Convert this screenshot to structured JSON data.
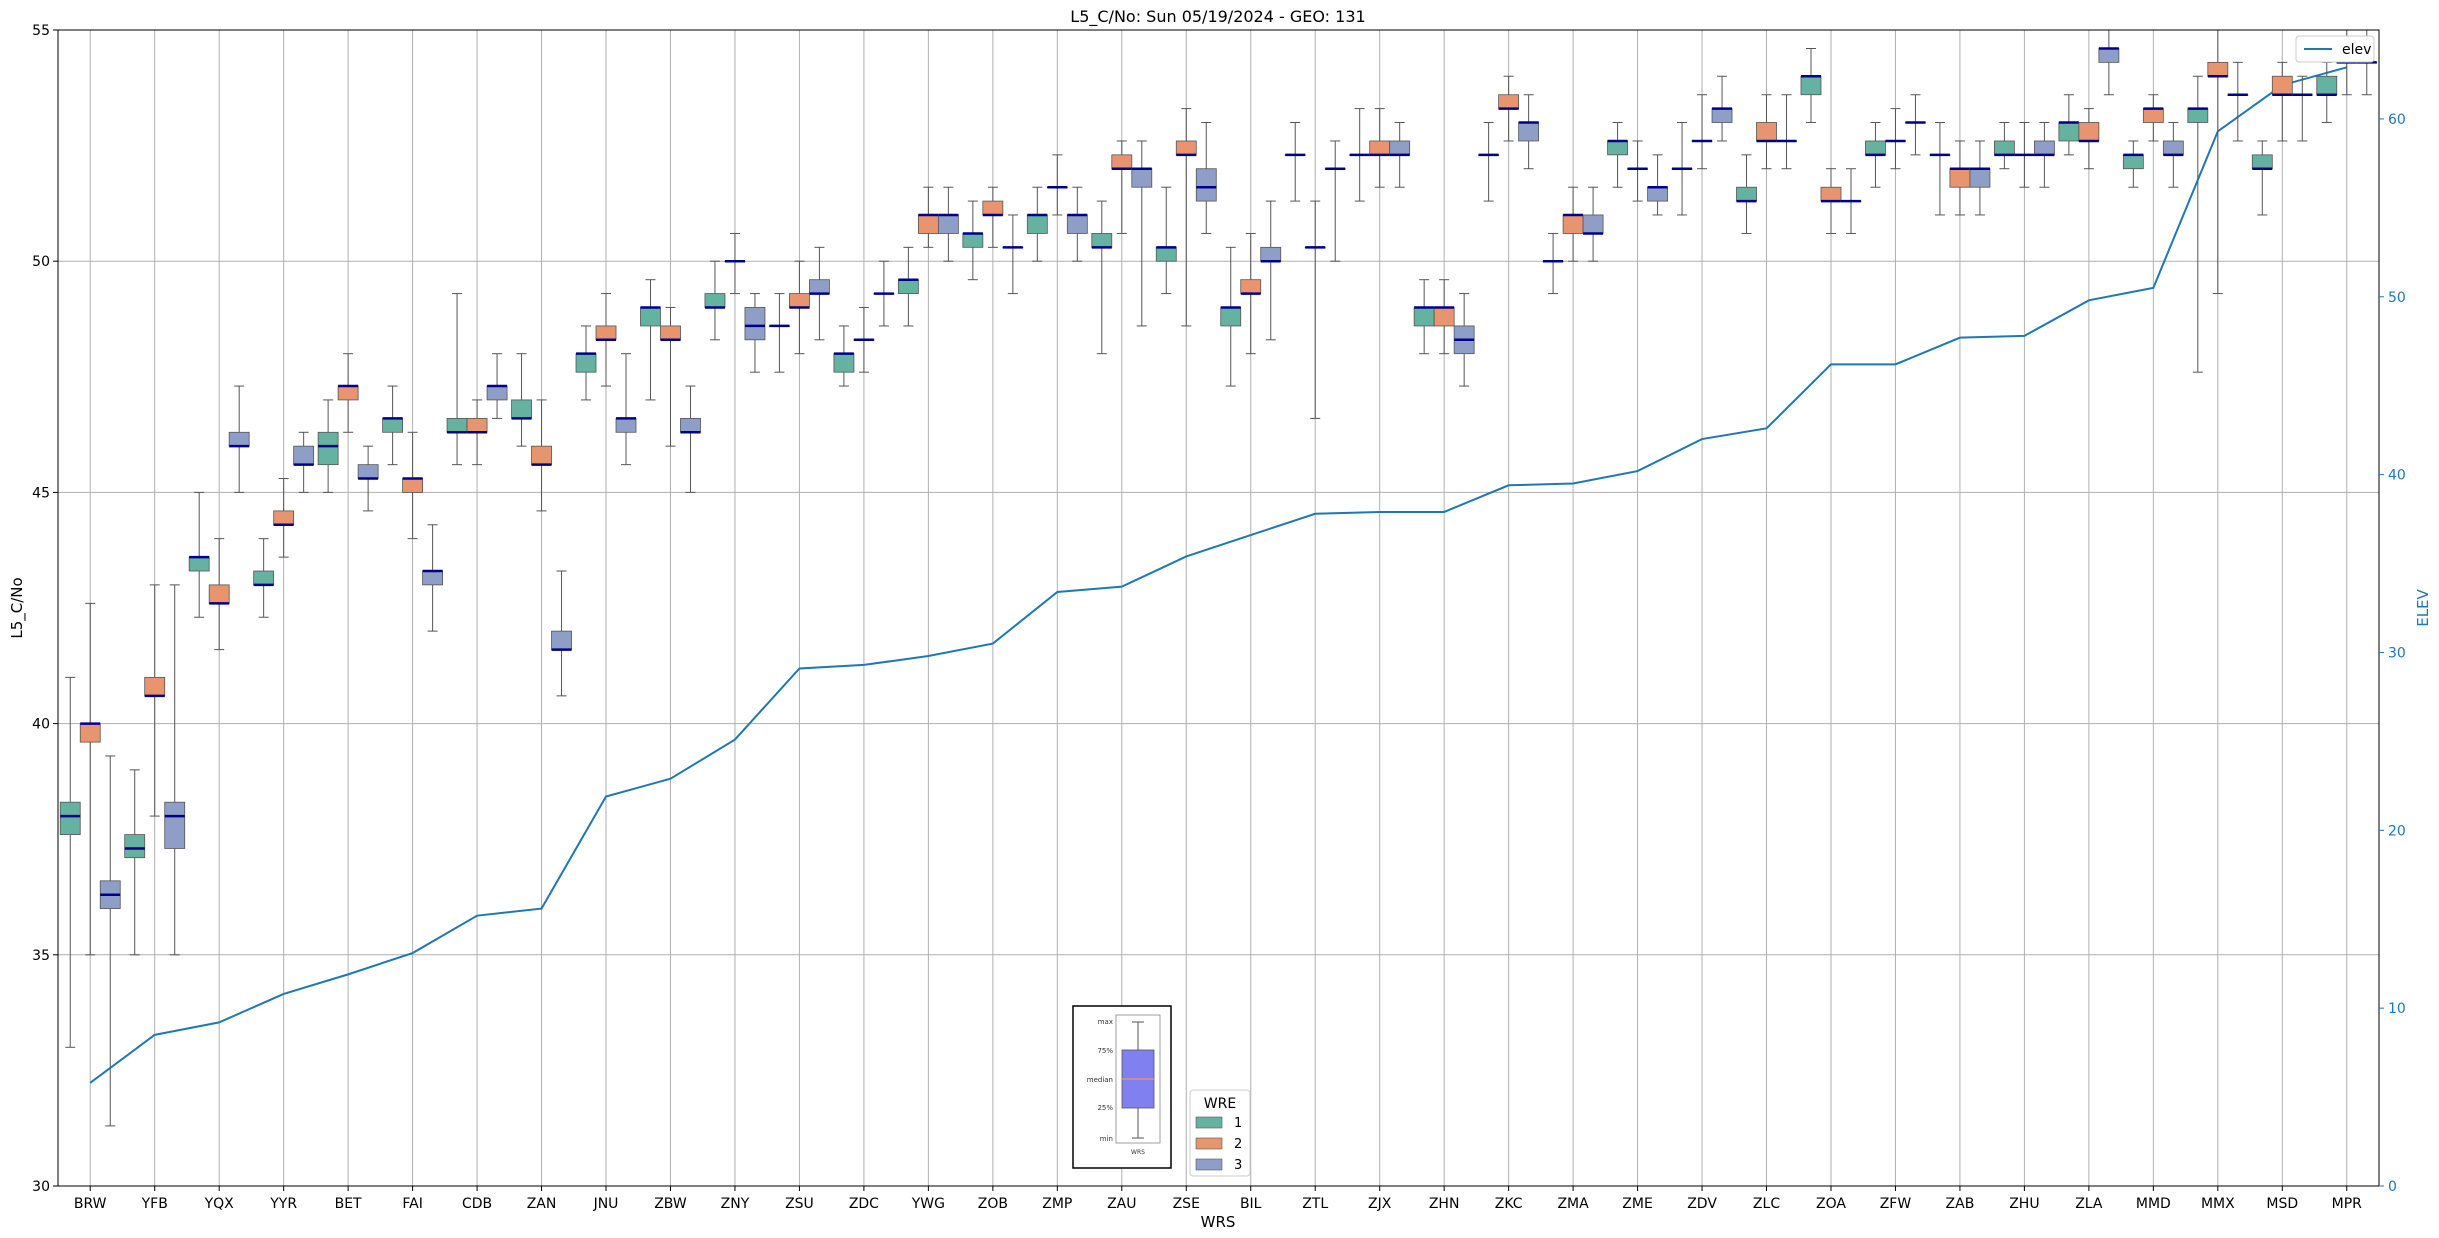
{
  "chart_data": {
    "type": "box",
    "title": "L5_C/No: Sun 05/19/2024 - GEO: 131",
    "xlabel": "WRS",
    "ylabel": "L5_C/No",
    "y2label": "ELEV",
    "ylim": [
      30,
      55
    ],
    "y2lim": [
      0,
      65
    ],
    "yticks": [
      "30",
      "35",
      "40",
      "45",
      "50",
      "55"
    ],
    "y2ticks": [
      "0",
      "10",
      "20",
      "30",
      "40",
      "50",
      "60"
    ],
    "grid": true,
    "categories": [
      "BRW",
      "YFB",
      "YQX",
      "YYR",
      "BET",
      "FAI",
      "CDB",
      "ZAN",
      "JNU",
      "ZBW",
      "ZNY",
      "ZSU",
      "ZDC",
      "YWG",
      "ZOB",
      "ZMP",
      "ZAU",
      "ZSE",
      "BIL",
      "ZTL",
      "ZJX",
      "ZHN",
      "ZKC",
      "ZMA",
      "ZME",
      "ZDV",
      "ZLC",
      "ZOA",
      "ZFW",
      "ZAB",
      "ZHU",
      "ZLA",
      "MMD",
      "MMX",
      "MSD",
      "MPR"
    ],
    "wre_legend": {
      "title": "WRE",
      "entries": [
        {
          "label": "1",
          "color": "#66b2a0"
        },
        {
          "label": "2",
          "color": "#e8956f"
        },
        {
          "label": "3",
          "color": "#8f9ec6"
        }
      ]
    },
    "elev_legend": {
      "label": "elev",
      "color": "#1f77b4"
    },
    "inset_labels": [
      "max",
      "75%",
      "median",
      "25%",
      "min",
      "WRS"
    ],
    "elev": [
      5.8,
      8.5,
      9.2,
      10.8,
      11.9,
      13.1,
      15.2,
      15.6,
      21.9,
      22.9,
      25.1,
      29.1,
      29.3,
      29.8,
      30.5,
      33.4,
      33.7,
      35.4,
      36.6,
      37.8,
      37.9,
      37.9,
      39.4,
      39.5,
      40.2,
      42.0,
      42.6,
      46.2,
      46.2,
      47.7,
      47.8,
      49.8,
      50.5,
      59.3,
      61.9,
      62.9
    ],
    "boxes": [
      {
        "station": "BRW",
        "wre": 1,
        "min": 33.0,
        "q1": 37.6,
        "median": 38.0,
        "q3": 38.3,
        "max": 41.0
      },
      {
        "station": "BRW",
        "wre": 2,
        "min": 35.0,
        "q1": 39.6,
        "median": 40.0,
        "q3": 40.0,
        "max": 42.6
      },
      {
        "station": "BRW",
        "wre": 3,
        "min": 31.3,
        "q1": 36.0,
        "median": 36.3,
        "q3": 36.6,
        "max": 39.3
      },
      {
        "station": "YFB",
        "wre": 1,
        "min": 35.0,
        "q1": 37.1,
        "median": 37.3,
        "q3": 37.6,
        "max": 39.0
      },
      {
        "station": "YFB",
        "wre": 2,
        "min": 38.0,
        "q1": 40.6,
        "median": 40.6,
        "q3": 41.0,
        "max": 43.0
      },
      {
        "station": "YFB",
        "wre": 3,
        "min": 35.0,
        "q1": 37.3,
        "median": 38.0,
        "q3": 38.3,
        "max": 43.0
      },
      {
        "station": "YQX",
        "wre": 1,
        "min": 42.3,
        "q1": 43.3,
        "median": 43.6,
        "q3": 43.6,
        "max": 45.0
      },
      {
        "station": "YQX",
        "wre": 2,
        "min": 41.6,
        "q1": 42.6,
        "median": 42.6,
        "q3": 43.0,
        "max": 44.0
      },
      {
        "station": "YQX",
        "wre": 3,
        "min": 45.0,
        "q1": 46.0,
        "median": 46.0,
        "q3": 46.3,
        "max": 47.3
      },
      {
        "station": "YYR",
        "wre": 1,
        "min": 42.3,
        "q1": 43.0,
        "median": 43.0,
        "q3": 43.3,
        "max": 44.0
      },
      {
        "station": "YYR",
        "wre": 2,
        "min": 43.6,
        "q1": 44.3,
        "median": 44.3,
        "q3": 44.6,
        "max": 45.3
      },
      {
        "station": "YYR",
        "wre": 3,
        "min": 45.0,
        "q1": 45.6,
        "median": 45.6,
        "q3": 46.0,
        "max": 46.3
      },
      {
        "station": "BET",
        "wre": 1,
        "min": 45.0,
        "q1": 45.6,
        "median": 46.0,
        "q3": 46.3,
        "max": 47.0
      },
      {
        "station": "BET",
        "wre": 2,
        "min": 46.3,
        "q1": 47.0,
        "median": 47.3,
        "q3": 47.3,
        "max": 48.0
      },
      {
        "station": "BET",
        "wre": 3,
        "min": 44.6,
        "q1": 45.3,
        "median": 45.3,
        "q3": 45.6,
        "max": 46.0
      },
      {
        "station": "FAI",
        "wre": 1,
        "min": 45.6,
        "q1": 46.3,
        "median": 46.6,
        "q3": 46.6,
        "max": 47.3
      },
      {
        "station": "FAI",
        "wre": 2,
        "min": 44.0,
        "q1": 45.0,
        "median": 45.3,
        "q3": 45.3,
        "max": 46.3
      },
      {
        "station": "FAI",
        "wre": 3,
        "min": 42.0,
        "q1": 43.0,
        "median": 43.3,
        "q3": 43.3,
        "max": 44.3
      },
      {
        "station": "CDB",
        "wre": 1,
        "min": 45.6,
        "q1": 46.3,
        "median": 46.3,
        "q3": 46.6,
        "max": 49.3
      },
      {
        "station": "CDB",
        "wre": 2,
        "min": 45.6,
        "q1": 46.3,
        "median": 46.3,
        "q3": 46.6,
        "max": 47.0
      },
      {
        "station": "CDB",
        "wre": 3,
        "min": 46.6,
        "q1": 47.0,
        "median": 47.3,
        "q3": 47.3,
        "max": 48.0
      },
      {
        "station": "ZAN",
        "wre": 1,
        "min": 46.0,
        "q1": 46.6,
        "median": 46.6,
        "q3": 47.0,
        "max": 48.0
      },
      {
        "station": "ZAN",
        "wre": 2,
        "min": 44.6,
        "q1": 45.6,
        "median": 45.6,
        "q3": 46.0,
        "max": 47.0
      },
      {
        "station": "ZAN",
        "wre": 3,
        "min": 40.6,
        "q1": 41.6,
        "median": 41.6,
        "q3": 42.0,
        "max": 43.3
      },
      {
        "station": "JNU",
        "wre": 1,
        "min": 47.0,
        "q1": 47.6,
        "median": 48.0,
        "q3": 48.0,
        "max": 48.6
      },
      {
        "station": "JNU",
        "wre": 2,
        "min": 47.3,
        "q1": 48.3,
        "median": 48.3,
        "q3": 48.6,
        "max": 49.3
      },
      {
        "station": "JNU",
        "wre": 3,
        "min": 45.6,
        "q1": 46.3,
        "median": 46.6,
        "q3": 46.6,
        "max": 48.0
      },
      {
        "station": "ZBW",
        "wre": 1,
        "min": 47.0,
        "q1": 48.6,
        "median": 49.0,
        "q3": 49.0,
        "max": 49.6
      },
      {
        "station": "ZBW",
        "wre": 2,
        "min": 46.0,
        "q1": 48.3,
        "median": 48.3,
        "q3": 48.6,
        "max": 49.0
      },
      {
        "station": "ZBW",
        "wre": 3,
        "min": 45.0,
        "q1": 46.3,
        "median": 46.3,
        "q3": 46.6,
        "max": 47.3
      },
      {
        "station": "ZNY",
        "wre": 1,
        "min": 48.3,
        "q1": 49.0,
        "median": 49.0,
        "q3": 49.3,
        "max": 50.0
      },
      {
        "station": "ZNY",
        "wre": 2,
        "min": 49.3,
        "q1": 50.0,
        "median": 50.0,
        "q3": 50.0,
        "max": 50.6
      },
      {
        "station": "ZNY",
        "wre": 3,
        "min": 47.6,
        "q1": 48.3,
        "median": 48.6,
        "q3": 49.0,
        "max": 49.3
      },
      {
        "station": "ZSU",
        "wre": 1,
        "min": 47.6,
        "q1": 48.6,
        "median": 48.6,
        "q3": 48.6,
        "max": 49.3
      },
      {
        "station": "ZSU",
        "wre": 2,
        "min": 48.0,
        "q1": 49.0,
        "median": 49.0,
        "q3": 49.3,
        "max": 50.0
      },
      {
        "station": "ZSU",
        "wre": 3,
        "min": 48.3,
        "q1": 49.3,
        "median": 49.3,
        "q3": 49.6,
        "max": 50.3
      },
      {
        "station": "ZDC",
        "wre": 1,
        "min": 47.3,
        "q1": 47.6,
        "median": 48.0,
        "q3": 48.0,
        "max": 48.6
      },
      {
        "station": "ZDC",
        "wre": 2,
        "min": 47.6,
        "q1": 48.3,
        "median": 48.3,
        "q3": 48.3,
        "max": 49.0
      },
      {
        "station": "ZDC",
        "wre": 3,
        "min": 48.6,
        "q1": 49.3,
        "median": 49.3,
        "q3": 49.3,
        "max": 50.0
      },
      {
        "station": "YWG",
        "wre": 1,
        "min": 48.6,
        "q1": 49.3,
        "median": 49.6,
        "q3": 49.6,
        "max": 50.3
      },
      {
        "station": "YWG",
        "wre": 2,
        "min": 50.3,
        "q1": 50.6,
        "median": 51.0,
        "q3": 51.0,
        "max": 51.6
      },
      {
        "station": "YWG",
        "wre": 3,
        "min": 50.0,
        "q1": 50.6,
        "median": 51.0,
        "q3": 51.0,
        "max": 51.6
      },
      {
        "station": "ZOB",
        "wre": 1,
        "min": 49.6,
        "q1": 50.3,
        "median": 50.6,
        "q3": 50.6,
        "max": 51.3
      },
      {
        "station": "ZOB",
        "wre": 2,
        "min": 50.3,
        "q1": 51.0,
        "median": 51.0,
        "q3": 51.3,
        "max": 51.6
      },
      {
        "station": "ZOB",
        "wre": 3,
        "min": 49.3,
        "q1": 50.3,
        "median": 50.3,
        "q3": 50.3,
        "max": 51.0
      },
      {
        "station": "ZMP",
        "wre": 1,
        "min": 50.0,
        "q1": 50.6,
        "median": 51.0,
        "q3": 51.0,
        "max": 51.6
      },
      {
        "station": "ZMP",
        "wre": 2,
        "min": 51.0,
        "q1": 51.6,
        "median": 51.6,
        "q3": 51.6,
        "max": 52.3
      },
      {
        "station": "ZMP",
        "wre": 3,
        "min": 50.0,
        "q1": 50.6,
        "median": 51.0,
        "q3": 51.0,
        "max": 51.6
      },
      {
        "station": "ZAU",
        "wre": 1,
        "min": 48.0,
        "q1": 50.3,
        "median": 50.3,
        "q3": 50.6,
        "max": 51.3
      },
      {
        "station": "ZAU",
        "wre": 2,
        "min": 50.6,
        "q1": 52.0,
        "median": 52.0,
        "q3": 52.3,
        "max": 52.6
      },
      {
        "station": "ZAU",
        "wre": 3,
        "min": 48.6,
        "q1": 51.6,
        "median": 52.0,
        "q3": 52.0,
        "max": 52.6
      },
      {
        "station": "ZSE",
        "wre": 1,
        "min": 49.3,
        "q1": 50.0,
        "median": 50.3,
        "q3": 50.3,
        "max": 51.6
      },
      {
        "station": "ZSE",
        "wre": 2,
        "min": 48.6,
        "q1": 52.3,
        "median": 52.3,
        "q3": 52.6,
        "max": 53.3
      },
      {
        "station": "ZSE",
        "wre": 3,
        "min": 50.6,
        "q1": 51.3,
        "median": 51.6,
        "q3": 52.0,
        "max": 53.0
      },
      {
        "station": "BIL",
        "wre": 1,
        "min": 47.3,
        "q1": 48.6,
        "median": 49.0,
        "q3": 49.0,
        "max": 50.3
      },
      {
        "station": "BIL",
        "wre": 2,
        "min": 48.0,
        "q1": 49.3,
        "median": 49.3,
        "q3": 49.6,
        "max": 50.6
      },
      {
        "station": "BIL",
        "wre": 3,
        "min": 48.3,
        "q1": 50.0,
        "median": 50.0,
        "q3": 50.3,
        "max": 51.3
      },
      {
        "station": "ZTL",
        "wre": 1,
        "min": 51.3,
        "q1": 52.3,
        "median": 52.3,
        "q3": 52.3,
        "max": 53.0
      },
      {
        "station": "ZTL",
        "wre": 2,
        "min": 46.6,
        "q1": 50.3,
        "median": 50.3,
        "q3": 50.3,
        "max": 51.3
      },
      {
        "station": "ZTL",
        "wre": 3,
        "min": 50.0,
        "q1": 52.0,
        "median": 52.0,
        "q3": 52.0,
        "max": 52.6
      },
      {
        "station": "ZJX",
        "wre": 1,
        "min": 51.3,
        "q1": 52.3,
        "median": 52.3,
        "q3": 52.3,
        "max": 53.3
      },
      {
        "station": "ZJX",
        "wre": 2,
        "min": 51.6,
        "q1": 52.3,
        "median": 52.3,
        "q3": 52.6,
        "max": 53.3
      },
      {
        "station": "ZJX",
        "wre": 3,
        "min": 51.6,
        "q1": 52.3,
        "median": 52.3,
        "q3": 52.6,
        "max": 53.0
      },
      {
        "station": "ZHN",
        "wre": 1,
        "min": 48.0,
        "q1": 48.6,
        "median": 49.0,
        "q3": 49.0,
        "max": 49.6
      },
      {
        "station": "ZHN",
        "wre": 2,
        "min": 48.0,
        "q1": 48.6,
        "median": 49.0,
        "q3": 49.0,
        "max": 49.6
      },
      {
        "station": "ZHN",
        "wre": 3,
        "min": 47.3,
        "q1": 48.0,
        "median": 48.3,
        "q3": 48.6,
        "max": 49.3
      },
      {
        "station": "ZKC",
        "wre": 1,
        "min": 51.3,
        "q1": 52.3,
        "median": 52.3,
        "q3": 52.3,
        "max": 53.0
      },
      {
        "station": "ZKC",
        "wre": 2,
        "min": 52.6,
        "q1": 53.3,
        "median": 53.3,
        "q3": 53.6,
        "max": 54.0
      },
      {
        "station": "ZKC",
        "wre": 3,
        "min": 52.0,
        "q1": 52.6,
        "median": 53.0,
        "q3": 53.0,
        "max": 53.6
      },
      {
        "station": "ZMA",
        "wre": 1,
        "min": 49.3,
        "q1": 50.0,
        "median": 50.0,
        "q3": 50.0,
        "max": 50.6
      },
      {
        "station": "ZMA",
        "wre": 2,
        "min": 50.0,
        "q1": 50.6,
        "median": 51.0,
        "q3": 51.0,
        "max": 51.6
      },
      {
        "station": "ZMA",
        "wre": 3,
        "min": 50.0,
        "q1": 50.6,
        "median": 50.6,
        "q3": 51.0,
        "max": 51.6
      },
      {
        "station": "ZME",
        "wre": 1,
        "min": 51.6,
        "q1": 52.3,
        "median": 52.6,
        "q3": 52.6,
        "max": 53.0
      },
      {
        "station": "ZME",
        "wre": 2,
        "min": 51.3,
        "q1": 52.0,
        "median": 52.0,
        "q3": 52.0,
        "max": 52.6
      },
      {
        "station": "ZME",
        "wre": 3,
        "min": 51.0,
        "q1": 51.3,
        "median": 51.6,
        "q3": 51.6,
        "max": 52.3
      },
      {
        "station": "ZDV",
        "wre": 1,
        "min": 51.0,
        "q1": 52.0,
        "median": 52.0,
        "q3": 52.0,
        "max": 53.0
      },
      {
        "station": "ZDV",
        "wre": 2,
        "min": 52.0,
        "q1": 52.6,
        "median": 52.6,
        "q3": 52.6,
        "max": 53.6
      },
      {
        "station": "ZDV",
        "wre": 3,
        "min": 52.6,
        "q1": 53.0,
        "median": 53.3,
        "q3": 53.3,
        "max": 54.0
      },
      {
        "station": "ZLC",
        "wre": 1,
        "min": 50.6,
        "q1": 51.3,
        "median": 51.3,
        "q3": 51.6,
        "max": 52.3
      },
      {
        "station": "ZLC",
        "wre": 2,
        "min": 52.0,
        "q1": 52.6,
        "median": 52.6,
        "q3": 53.0,
        "max": 53.6
      },
      {
        "station": "ZLC",
        "wre": 3,
        "min": 52.0,
        "q1": 52.6,
        "median": 52.6,
        "q3": 52.6,
        "max": 53.6
      },
      {
        "station": "ZOA",
        "wre": 1,
        "min": 53.0,
        "q1": 53.6,
        "median": 54.0,
        "q3": 54.0,
        "max": 54.6
      },
      {
        "station": "ZOA",
        "wre": 2,
        "min": 50.6,
        "q1": 51.3,
        "median": 51.3,
        "q3": 51.6,
        "max": 52.0
      },
      {
        "station": "ZOA",
        "wre": 3,
        "min": 50.6,
        "q1": 51.3,
        "median": 51.3,
        "q3": 51.3,
        "max": 52.0
      },
      {
        "station": "ZFW",
        "wre": 1,
        "min": 51.6,
        "q1": 52.3,
        "median": 52.3,
        "q3": 52.6,
        "max": 53.0
      },
      {
        "station": "ZFW",
        "wre": 2,
        "min": 52.0,
        "q1": 52.6,
        "median": 52.6,
        "q3": 52.6,
        "max": 53.3
      },
      {
        "station": "ZFW",
        "wre": 3,
        "min": 52.3,
        "q1": 53.0,
        "median": 53.0,
        "q3": 53.0,
        "max": 53.6
      },
      {
        "station": "ZAB",
        "wre": 1,
        "min": 51.0,
        "q1": 52.3,
        "median": 52.3,
        "q3": 52.3,
        "max": 53.0
      },
      {
        "station": "ZAB",
        "wre": 2,
        "min": 51.0,
        "q1": 51.6,
        "median": 52.0,
        "q3": 52.0,
        "max": 52.6
      },
      {
        "station": "ZAB",
        "wre": 3,
        "min": 51.0,
        "q1": 51.6,
        "median": 52.0,
        "q3": 52.0,
        "max": 52.6
      },
      {
        "station": "ZHU",
        "wre": 1,
        "min": 52.0,
        "q1": 52.3,
        "median": 52.3,
        "q3": 52.6,
        "max": 53.0
      },
      {
        "station": "ZHU",
        "wre": 2,
        "min": 51.6,
        "q1": 52.3,
        "median": 52.3,
        "q3": 52.3,
        "max": 53.0
      },
      {
        "station": "ZHU",
        "wre": 3,
        "min": 51.6,
        "q1": 52.3,
        "median": 52.3,
        "q3": 52.6,
        "max": 53.0
      },
      {
        "station": "ZLA",
        "wre": 1,
        "min": 52.3,
        "q1": 52.6,
        "median": 53.0,
        "q3": 53.0,
        "max": 53.6
      },
      {
        "station": "ZLA",
        "wre": 2,
        "min": 52.0,
        "q1": 52.6,
        "median": 52.6,
        "q3": 53.0,
        "max": 53.3
      },
      {
        "station": "ZLA",
        "wre": 3,
        "min": 53.6,
        "q1": 54.3,
        "median": 54.6,
        "q3": 54.6,
        "max": 55.0
      },
      {
        "station": "MMD",
        "wre": 1,
        "min": 51.6,
        "q1": 52.0,
        "median": 52.3,
        "q3": 52.3,
        "max": 52.6
      },
      {
        "station": "MMD",
        "wre": 2,
        "min": 52.6,
        "q1": 53.0,
        "median": 53.3,
        "q3": 53.3,
        "max": 53.6
      },
      {
        "station": "MMD",
        "wre": 3,
        "min": 51.6,
        "q1": 52.3,
        "median": 52.3,
        "q3": 52.6,
        "max": 53.0
      },
      {
        "station": "MMX",
        "wre": 1,
        "min": 47.6,
        "q1": 53.0,
        "median": 53.3,
        "q3": 53.3,
        "max": 54.0
      },
      {
        "station": "MMX",
        "wre": 2,
        "min": 49.3,
        "q1": 54.0,
        "median": 54.0,
        "q3": 54.3,
        "max": 55.0
      },
      {
        "station": "MMX",
        "wre": 3,
        "min": 52.6,
        "q1": 53.6,
        "median": 53.6,
        "q3": 53.6,
        "max": 54.3
      },
      {
        "station": "MSD",
        "wre": 1,
        "min": 51.0,
        "q1": 52.0,
        "median": 52.0,
        "q3": 52.3,
        "max": 52.6
      },
      {
        "station": "MSD",
        "wre": 2,
        "min": 52.6,
        "q1": 53.6,
        "median": 53.6,
        "q3": 54.0,
        "max": 54.3
      },
      {
        "station": "MSD",
        "wre": 3,
        "min": 52.6,
        "q1": 53.6,
        "median": 53.6,
        "q3": 53.6,
        "max": 54.0
      },
      {
        "station": "MPR",
        "wre": 1,
        "min": 53.0,
        "q1": 53.6,
        "median": 53.6,
        "q3": 54.0,
        "max": 54.3
      },
      {
        "station": "MPR",
        "wre": 2,
        "min": 53.6,
        "q1": 54.3,
        "median": 54.3,
        "q3": 54.3,
        "max": 55.0
      },
      {
        "station": "MPR",
        "wre": 3,
        "min": 53.6,
        "q1": 54.3,
        "median": 54.3,
        "q3": 54.3,
        "max": 55.0
      }
    ]
  }
}
